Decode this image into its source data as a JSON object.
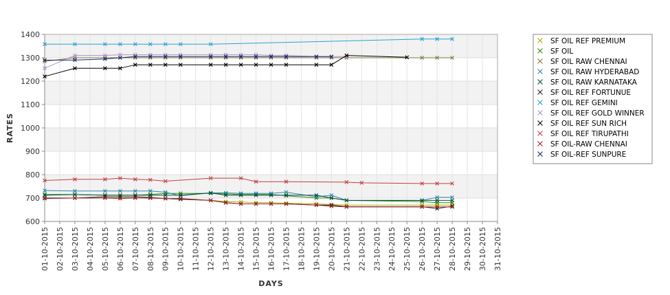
{
  "chart_data": {
    "type": "line",
    "title": "",
    "xlabel": "DAYS",
    "ylabel": "RATES",
    "x_categories": [
      "01-10-2015",
      "02-10-2015",
      "03-10-2015",
      "04-10-2015",
      "05-10-2015",
      "06-10-2015",
      "07-10-2015",
      "08-10-2015",
      "09-10-2015",
      "10-10-2015",
      "11-10-2015",
      "12-10-2015",
      "13-10-2015",
      "14-10-2015",
      "15-10-2015",
      "16-10-2015",
      "17-10-2015",
      "18-10-2015",
      "19-10-2015",
      "20-10-2015",
      "21-10-2015",
      "22-10-2015",
      "23-10-2015",
      "24-10-2015",
      "25-10-2015",
      "26-10-2015",
      "27-10-2015",
      "28-10-2015",
      "29-10-2015",
      "30-10-2015",
      "31-10-2015"
    ],
    "yticks": [
      600,
      700,
      800,
      900,
      1000,
      1100,
      1200,
      1300,
      1400
    ],
    "ylim": [
      600,
      1400
    ],
    "grid": true,
    "legend_position": "right",
    "series": [
      {
        "name": " SF OIL REF PREMIUM",
        "color": "#a8a800",
        "points": [
          [
            "01-10-2015",
            700
          ],
          [
            "03-10-2015",
            700
          ],
          [
            "05-10-2015",
            700
          ],
          [
            "06-10-2015",
            700
          ],
          [
            "07-10-2015",
            700
          ],
          [
            "08-10-2015",
            700
          ],
          [
            "09-10-2015",
            698
          ],
          [
            "10-10-2015",
            695
          ],
          [
            "12-10-2015",
            690
          ],
          [
            "13-10-2015",
            685
          ],
          [
            "14-10-2015",
            683
          ],
          [
            "15-10-2015",
            680
          ],
          [
            "16-10-2015",
            680
          ],
          [
            "17-10-2015",
            678
          ],
          [
            "19-10-2015",
            675
          ],
          [
            "20-10-2015",
            672
          ],
          [
            "21-10-2015",
            670
          ],
          [
            "26-10-2015",
            670
          ],
          [
            "27-10-2015",
            670
          ],
          [
            "28-10-2015",
            670
          ]
        ]
      },
      {
        "name": "SF OIL",
        "color": "#2d8a00",
        "points": [
          [
            "01-10-2015",
            715
          ],
          [
            "03-10-2015",
            715
          ],
          [
            "05-10-2015",
            712
          ],
          [
            "06-10-2015",
            712
          ],
          [
            "07-10-2015",
            712
          ],
          [
            "08-10-2015",
            715
          ],
          [
            "09-10-2015",
            720
          ],
          [
            "10-10-2015",
            720
          ],
          [
            "12-10-2015",
            720
          ],
          [
            "13-10-2015",
            718
          ],
          [
            "14-10-2015",
            715
          ],
          [
            "15-10-2015",
            715
          ],
          [
            "16-10-2015",
            715
          ],
          [
            "17-10-2015",
            710
          ],
          [
            "19-10-2015",
            700
          ],
          [
            "20-10-2015",
            700
          ],
          [
            "21-10-2015",
            690
          ],
          [
            "26-10-2015",
            685
          ],
          [
            "27-10-2015",
            680
          ],
          [
            "28-10-2015",
            680
          ]
        ]
      },
      {
        "name": "SF OIL RAW CHENNAI",
        "color": "#7a7a40",
        "points": [
          [
            "01-10-2015",
            1285
          ],
          [
            "03-10-2015",
            1300
          ],
          [
            "05-10-2015",
            1300
          ],
          [
            "06-10-2015",
            1300
          ],
          [
            "07-10-2015",
            1300
          ],
          [
            "08-10-2015",
            1300
          ],
          [
            "09-10-2015",
            1300
          ],
          [
            "10-10-2015",
            1300
          ],
          [
            "12-10-2015",
            1300
          ],
          [
            "13-10-2015",
            1300
          ],
          [
            "14-10-2015",
            1300
          ],
          [
            "15-10-2015",
            1300
          ],
          [
            "16-10-2015",
            1300
          ],
          [
            "17-10-2015",
            1300
          ],
          [
            "19-10-2015",
            1300
          ],
          [
            "20-10-2015",
            1300
          ],
          [
            "21-10-2015",
            1300
          ],
          [
            "26-10-2015",
            1300
          ],
          [
            "27-10-2015",
            1300
          ],
          [
            "28-10-2015",
            1300
          ]
        ]
      },
      {
        "name": "SF OIL RAW HYDERABAD",
        "color": "#2e86a8",
        "points": [
          [
            "01-10-2015",
            732
          ],
          [
            "03-10-2015",
            730
          ],
          [
            "05-10-2015",
            730
          ],
          [
            "06-10-2015",
            730
          ],
          [
            "07-10-2015",
            730
          ],
          [
            "08-10-2015",
            730
          ],
          [
            "09-10-2015",
            725
          ],
          [
            "10-10-2015",
            710
          ],
          [
            "12-10-2015",
            722
          ],
          [
            "13-10-2015",
            722
          ],
          [
            "14-10-2015",
            720
          ],
          [
            "15-10-2015",
            720
          ],
          [
            "16-10-2015",
            720
          ],
          [
            "17-10-2015",
            725
          ],
          [
            "19-10-2015",
            705
          ],
          [
            "20-10-2015",
            712
          ],
          [
            "21-10-2015",
            690
          ],
          [
            "26-10-2015",
            690
          ],
          [
            "27-10-2015",
            703
          ],
          [
            "28-10-2015",
            703
          ]
        ]
      },
      {
        "name": "SF OIL RAW KARNATAKA",
        "color": "#004d40",
        "points": [
          [
            "01-10-2015",
            712
          ],
          [
            "03-10-2015",
            715
          ],
          [
            "05-10-2015",
            712
          ],
          [
            "06-10-2015",
            712
          ],
          [
            "07-10-2015",
            712
          ],
          [
            "08-10-2015",
            712
          ],
          [
            "09-10-2015",
            712
          ],
          [
            "10-10-2015",
            712
          ],
          [
            "12-10-2015",
            722
          ],
          [
            "13-10-2015",
            712
          ],
          [
            "14-10-2015",
            712
          ],
          [
            "15-10-2015",
            712
          ],
          [
            "16-10-2015",
            712
          ],
          [
            "17-10-2015",
            712
          ],
          [
            "19-10-2015",
            712
          ],
          [
            "20-10-2015",
            700
          ],
          [
            "21-10-2015",
            690
          ],
          [
            "26-10-2015",
            690
          ],
          [
            "27-10-2015",
            690
          ],
          [
            "28-10-2015",
            690
          ]
        ]
      },
      {
        "name": "SF OIL REF FORTUNUE",
        "color": "#222222",
        "points": [
          [
            "01-10-2015",
            700
          ],
          [
            "03-10-2015",
            700
          ],
          [
            "05-10-2015",
            705
          ],
          [
            "06-10-2015",
            705
          ],
          [
            "07-10-2015",
            705
          ],
          [
            "08-10-2015",
            702
          ],
          [
            "09-10-2015",
            698
          ],
          [
            "10-10-2015",
            695
          ],
          [
            "12-10-2015",
            690
          ],
          [
            "13-10-2015",
            680
          ],
          [
            "14-10-2015",
            675
          ],
          [
            "15-10-2015",
            675
          ],
          [
            "16-10-2015",
            675
          ],
          [
            "17-10-2015",
            675
          ],
          [
            "19-10-2015",
            670
          ],
          [
            "20-10-2015",
            670
          ],
          [
            "21-10-2015",
            663
          ],
          [
            "26-10-2015",
            663
          ],
          [
            "27-10-2015",
            655
          ],
          [
            "28-10-2015",
            665
          ]
        ]
      },
      {
        "name": "SF OIL REF GEMINI",
        "color": "#2aa0d0",
        "points": [
          [
            "01-10-2015",
            1358
          ],
          [
            "03-10-2015",
            1358
          ],
          [
            "05-10-2015",
            1358
          ],
          [
            "06-10-2015",
            1358
          ],
          [
            "07-10-2015",
            1358
          ],
          [
            "08-10-2015",
            1358
          ],
          [
            "09-10-2015",
            1358
          ],
          [
            "10-10-2015",
            1358
          ],
          [
            "12-10-2015",
            1358
          ],
          [
            "26-10-2015",
            1380
          ],
          [
            "27-10-2015",
            1380
          ],
          [
            "28-10-2015",
            1380
          ]
        ]
      },
      {
        "name": "SF OIL REF GOLD WINNER",
        "color": "#b090c8",
        "points": [
          [
            "01-10-2015",
            1255
          ],
          [
            "03-10-2015",
            1310
          ],
          [
            "05-10-2015",
            1310
          ],
          [
            "06-10-2015",
            1313
          ],
          [
            "07-10-2015",
            1313
          ],
          [
            "08-10-2015",
            1313
          ],
          [
            "09-10-2015",
            1313
          ],
          [
            "10-10-2015",
            1313
          ],
          [
            "12-10-2015",
            1313
          ],
          [
            "13-10-2015",
            1313
          ],
          [
            "14-10-2015",
            1313
          ],
          [
            "15-10-2015",
            1313
          ],
          [
            "16-10-2015",
            1310
          ],
          [
            "17-10-2015",
            1310
          ],
          [
            "19-10-2015",
            1305
          ],
          [
            "20-10-2015",
            1305
          ],
          [
            "21-10-2015",
            1305
          ]
        ]
      },
      {
        "name": "SF OIL REF SUN RICH",
        "color": "#000000",
        "points": [
          [
            "01-10-2015",
            1220
          ],
          [
            "03-10-2015",
            1255
          ],
          [
            "05-10-2015",
            1255
          ],
          [
            "06-10-2015",
            1255
          ],
          [
            "07-10-2015",
            1270
          ],
          [
            "08-10-2015",
            1270
          ],
          [
            "09-10-2015",
            1270
          ],
          [
            "10-10-2015",
            1270
          ],
          [
            "12-10-2015",
            1270
          ],
          [
            "13-10-2015",
            1270
          ],
          [
            "14-10-2015",
            1270
          ],
          [
            "15-10-2015",
            1270
          ],
          [
            "16-10-2015",
            1270
          ],
          [
            "17-10-2015",
            1270
          ],
          [
            "19-10-2015",
            1270
          ],
          [
            "20-10-2015",
            1270
          ],
          [
            "21-10-2015",
            1310
          ],
          [
            "25-10-2015",
            1302
          ]
        ]
      },
      {
        "name": "SF OIL REF TIRUPATHI",
        "color": "#c04040",
        "points": [
          [
            "01-10-2015",
            775
          ],
          [
            "03-10-2015",
            780
          ],
          [
            "05-10-2015",
            780
          ],
          [
            "06-10-2015",
            785
          ],
          [
            "07-10-2015",
            780
          ],
          [
            "08-10-2015",
            778
          ],
          [
            "09-10-2015",
            772
          ],
          [
            "12-10-2015",
            785
          ],
          [
            "14-10-2015",
            785
          ],
          [
            "15-10-2015",
            770
          ],
          [
            "17-10-2015",
            770
          ],
          [
            "21-10-2015",
            768
          ],
          [
            "22-10-2015",
            765
          ],
          [
            "26-10-2015",
            762
          ],
          [
            "27-10-2015",
            762
          ],
          [
            "28-10-2015",
            762
          ]
        ]
      },
      {
        "name": "SF OIL-RAW CHENNAI",
        "color": "#a02020",
        "points": [
          [
            "01-10-2015",
            698
          ],
          [
            "03-10-2015",
            700
          ],
          [
            "05-10-2015",
            700
          ],
          [
            "06-10-2015",
            698
          ],
          [
            "07-10-2015",
            700
          ],
          [
            "08-10-2015",
            700
          ],
          [
            "09-10-2015",
            698
          ],
          [
            "10-10-2015",
            698
          ],
          [
            "12-10-2015",
            690
          ],
          [
            "13-10-2015",
            680
          ],
          [
            "14-10-2015",
            675
          ],
          [
            "15-10-2015",
            675
          ],
          [
            "16-10-2015",
            675
          ],
          [
            "17-10-2015",
            675
          ],
          [
            "19-10-2015",
            670
          ],
          [
            "20-10-2015",
            665
          ],
          [
            "21-10-2015",
            662
          ],
          [
            "26-10-2015",
            662
          ],
          [
            "27-10-2015",
            662
          ],
          [
            "28-10-2015",
            662
          ]
        ]
      },
      {
        "name": "SF OIL-REF SUNPURE",
        "color": "#1a2a6a",
        "points": [
          [
            "01-10-2015",
            1290
          ],
          [
            "03-10-2015",
            1290
          ],
          [
            "05-10-2015",
            1295
          ],
          [
            "06-10-2015",
            1300
          ],
          [
            "07-10-2015",
            1305
          ],
          [
            "08-10-2015",
            1305
          ],
          [
            "09-10-2015",
            1305
          ],
          [
            "10-10-2015",
            1305
          ],
          [
            "12-10-2015",
            1305
          ],
          [
            "13-10-2015",
            1305
          ],
          [
            "14-10-2015",
            1305
          ],
          [
            "15-10-2015",
            1305
          ],
          [
            "16-10-2015",
            1305
          ],
          [
            "17-10-2015",
            1305
          ],
          [
            "19-10-2015",
            1305
          ],
          [
            "20-10-2015",
            1305
          ]
        ]
      }
    ]
  }
}
